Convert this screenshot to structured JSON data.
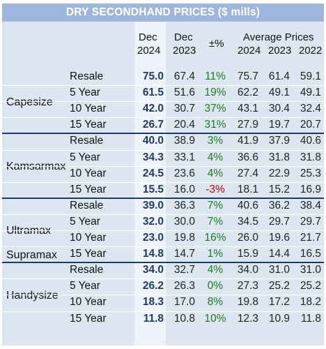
{
  "title": "DRY SECONDHAND PRICES ($ mills)",
  "headers": {
    "dec2024_top": "Dec",
    "dec2024_bottom": "2024",
    "dec2023_top": "Dec",
    "dec2023_bottom": "2023",
    "change": "±%",
    "avg_title": "Average Prices",
    "avg_2024": "2024",
    "avg_2023": "2023",
    "avg_2022": "2022"
  },
  "groups": [
    {
      "name": "Capesize",
      "rows": [
        {
          "age": "Resale",
          "dec2024": "75.0",
          "dec2023": "67.4",
          "chg": "11%",
          "a2024": "75.7",
          "a2023": "61.4",
          "a2022": "59.1"
        },
        {
          "age": "5 Year",
          "dec2024": "61.5",
          "dec2023": "51.6",
          "chg": "19%",
          "a2024": "62.2",
          "a2023": "49.1",
          "a2022": "49.1"
        },
        {
          "age": "10 Year",
          "dec2024": "42.0",
          "dec2023": "30.7",
          "chg": "37%",
          "a2024": "43.1",
          "a2023": "30.4",
          "a2022": "32.4"
        },
        {
          "age": "15 Year",
          "dec2024": "26.7",
          "dec2023": "20.4",
          "chg": "31%",
          "a2024": "27.9",
          "a2023": "19.7",
          "a2022": "20.7"
        }
      ]
    },
    {
      "name": "Kamsarmax",
      "rows": [
        {
          "age": "Resale",
          "dec2024": "40.0",
          "dec2023": "38.9",
          "chg": "3%",
          "a2024": "41.9",
          "a2023": "37.9",
          "a2022": "40.6"
        },
        {
          "age": "5 Year",
          "dec2024": "34.3",
          "dec2023": "33.1",
          "chg": "4%",
          "a2024": "36.6",
          "a2023": "31.8",
          "a2022": "31.8"
        },
        {
          "age": "10 Year",
          "dec2024": "24.5",
          "dec2023": "23.6",
          "chg": "4%",
          "a2024": "27.4",
          "a2023": "22.9",
          "a2022": "25.3"
        },
        {
          "age": "15 Year",
          "dec2024": "15.5",
          "dec2023": "16.0",
          "chg": "-3%",
          "a2024": "18.1",
          "a2023": "15.2",
          "a2022": "16.9"
        }
      ]
    },
    {
      "name": "Ultramax",
      "name2": "Supramax",
      "rows": [
        {
          "age": "Resale",
          "dec2024": "39.0",
          "dec2023": "36.3",
          "chg": "7%",
          "a2024": "40.6",
          "a2023": "36.2",
          "a2022": "38.4"
        },
        {
          "age": "5 Year",
          "dec2024": "32.0",
          "dec2023": "30.0",
          "chg": "7%",
          "a2024": "34.5",
          "a2023": "29.7",
          "a2022": "29.7"
        },
        {
          "age": "10 Year",
          "dec2024": "23.0",
          "dec2023": "19.8",
          "chg": "16%",
          "a2024": "26.0",
          "a2023": "19.6",
          "a2022": "21.7"
        },
        {
          "age": "15 Year",
          "dec2024": "14.8",
          "dec2023": "14.7",
          "chg": "1%",
          "a2024": "15.9",
          "a2023": "14.4",
          "a2022": "16.5"
        }
      ]
    },
    {
      "name": "Handysize",
      "rows": [
        {
          "age": "Resale",
          "dec2024": "34.0",
          "dec2023": "32.7",
          "chg": "4%",
          "a2024": "34.0",
          "a2023": "31.0",
          "a2022": "31.0"
        },
        {
          "age": "5 Year",
          "dec2024": "26.2",
          "dec2023": "26.3",
          "chg": "0%",
          "a2024": "27.3",
          "a2023": "25.2",
          "a2022": "25.2"
        },
        {
          "age": "10 Year",
          "dec2024": "18.3",
          "dec2023": "17.0",
          "chg": "8%",
          "a2024": "19.8",
          "a2023": "17.2",
          "a2022": "18.2"
        },
        {
          "age": "15 Year",
          "dec2024": "11.8",
          "dec2023": "10.8",
          "chg": "10%",
          "a2024": "12.3",
          "a2023": "10.9",
          "a2022": "11.8"
        }
      ]
    }
  ],
  "colors": {
    "positive": "#1f7a1f",
    "negative": "#c00000",
    "accent": "#1f3a68",
    "title_bg": "#9eb6db",
    "table_bg": "#dce6f1"
  }
}
